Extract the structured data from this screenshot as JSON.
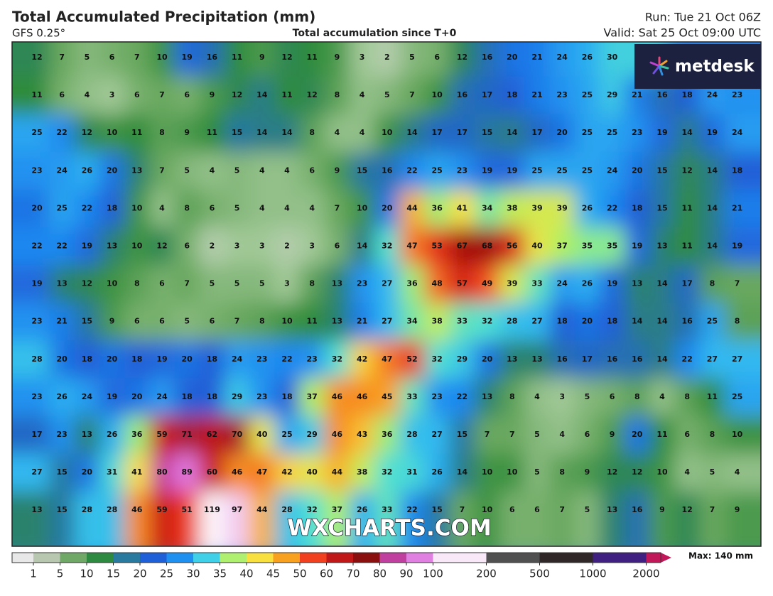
{
  "header": {
    "title": "Total Accumulated Precipitation (mm)",
    "model": "GFS 0.25°",
    "subtitle": "Total accumulation since T+0",
    "run": "Run: Tue 21 Oct 06Z",
    "valid": "Valid: Sat 25 Oct 09:00 UTC"
  },
  "logo": "metdesk",
  "watermark": "WXCHARTS.COM",
  "grid": {
    "rows": [
      [
        12,
        7,
        5,
        6,
        7,
        10,
        19,
        16,
        11,
        9,
        12,
        11,
        9,
        3,
        2,
        5,
        6,
        12,
        16,
        20,
        21,
        24,
        26,
        30
      ],
      [
        11,
        6,
        4,
        3,
        6,
        7,
        6,
        9,
        12,
        14,
        11,
        12,
        8,
        4,
        5,
        7,
        10,
        16,
        17,
        18,
        21,
        23,
        25,
        29,
        21,
        16,
        18,
        24,
        23
      ],
      [
        25,
        22,
        12,
        10,
        11,
        8,
        9,
        11,
        15,
        14,
        14,
        8,
        4,
        4,
        10,
        14,
        17,
        17,
        15,
        14,
        17,
        20,
        25,
        25,
        23,
        19,
        14,
        19,
        24
      ],
      [
        23,
        24,
        26,
        20,
        13,
        7,
        5,
        4,
        5,
        4,
        4,
        6,
        9,
        15,
        16,
        22,
        25,
        23,
        19,
        19,
        25,
        25,
        25,
        24,
        20,
        15,
        12,
        14,
        18
      ],
      [
        20,
        25,
        22,
        18,
        10,
        4,
        8,
        6,
        5,
        4,
        4,
        4,
        7,
        10,
        20,
        44,
        36,
        41,
        34,
        38,
        39,
        39,
        26,
        22,
        18,
        15,
        11,
        14,
        21
      ],
      [
        22,
        22,
        19,
        13,
        10,
        12,
        6,
        2,
        3,
        3,
        2,
        3,
        6,
        14,
        32,
        47,
        53,
        67,
        68,
        56,
        40,
        37,
        35,
        35,
        19,
        13,
        11,
        14,
        19
      ],
      [
        19,
        13,
        12,
        10,
        8,
        6,
        7,
        5,
        5,
        5,
        3,
        8,
        13,
        23,
        27,
        36,
        48,
        57,
        49,
        39,
        33,
        24,
        26,
        19,
        13,
        14,
        17,
        8,
        7
      ],
      [
        23,
        21,
        15,
        9,
        6,
        6,
        5,
        6,
        7,
        8,
        10,
        11,
        13,
        21,
        27,
        34,
        38,
        33,
        32,
        28,
        27,
        18,
        20,
        18,
        14,
        14,
        16,
        25,
        8
      ],
      [
        28,
        20,
        18,
        20,
        18,
        19,
        20,
        18,
        24,
        23,
        22,
        23,
        32,
        42,
        47,
        52,
        32,
        29,
        20,
        13,
        13,
        16,
        17,
        16,
        16,
        14,
        22,
        27,
        27
      ],
      [
        23,
        26,
        24,
        19,
        20,
        24,
        18,
        18,
        29,
        23,
        18,
        37,
        46,
        46,
        45,
        33,
        23,
        22,
        13,
        8,
        4,
        3,
        5,
        6,
        8,
        4,
        8,
        11,
        25
      ],
      [
        17,
        23,
        13,
        26,
        36,
        59,
        71,
        62,
        70,
        40,
        25,
        29,
        46,
        43,
        36,
        28,
        27,
        15,
        7,
        7,
        5,
        4,
        6,
        9,
        20,
        11,
        6,
        8,
        10
      ],
      [
        27,
        15,
        20,
        31,
        41,
        80,
        89,
        60,
        46,
        47,
        42,
        40,
        44,
        38,
        32,
        31,
        26,
        14,
        10,
        10,
        5,
        8,
        9,
        12,
        12,
        10,
        4,
        5,
        4
      ],
      [
        13,
        15,
        28,
        28,
        46,
        59,
        51,
        119,
        97,
        44,
        28,
        32,
        37,
        26,
        33,
        22,
        15,
        7,
        10,
        6,
        6,
        7,
        5,
        13,
        16,
        9,
        12,
        7,
        9
      ]
    ]
  },
  "legend": {
    "ticks": [
      1,
      5,
      10,
      15,
      20,
      25,
      30,
      35,
      40,
      45,
      50,
      60,
      70,
      80,
      90,
      100,
      200,
      500,
      1000,
      2000
    ],
    "max_label": "Max: 140 mm"
  }
}
